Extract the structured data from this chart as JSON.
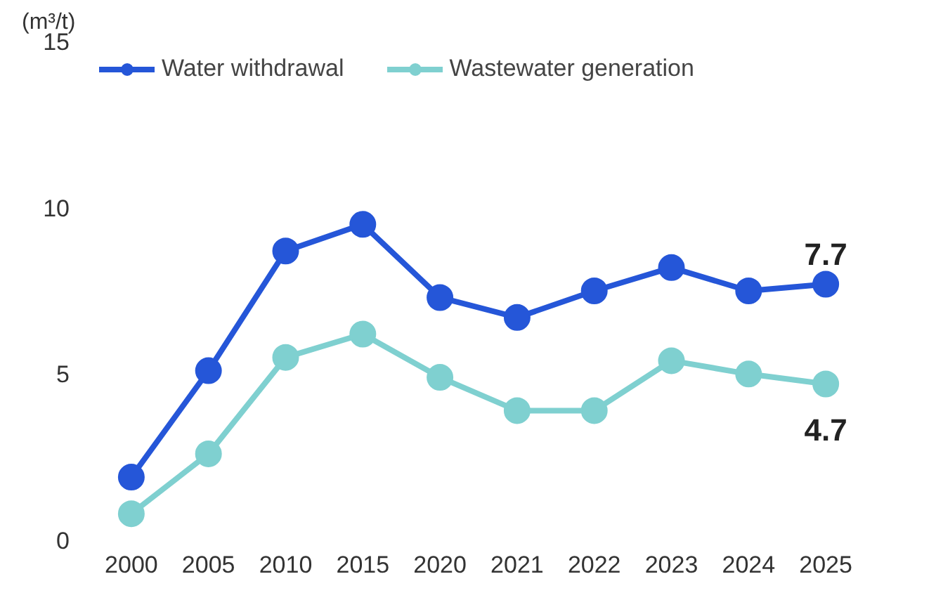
{
  "chart_data": {
    "type": "line",
    "ylabel": "(m³/t)",
    "categories": [
      "2000",
      "2005",
      "2010",
      "2015",
      "2020",
      "2021",
      "2022",
      "2023",
      "2024",
      "2025"
    ],
    "series": [
      {
        "name": "Water withdrawal",
        "color": "#2556d8",
        "values": [
          1.9,
          5.1,
          8.7,
          9.5,
          7.3,
          6.7,
          7.5,
          8.2,
          7.5,
          7.7
        ],
        "value_labels": [
          null,
          null,
          null,
          null,
          null,
          null,
          null,
          null,
          null,
          "7.7"
        ]
      },
      {
        "name": "Wastewater generation",
        "color": "#7fd0d0",
        "values": [
          0.8,
          2.6,
          5.5,
          6.2,
          4.9,
          3.9,
          3.9,
          5.4,
          5.0,
          4.7
        ],
        "value_labels": [
          null,
          null,
          null,
          null,
          null,
          null,
          null,
          null,
          null,
          "4.7"
        ]
      }
    ],
    "ylim": [
      0,
      15
    ],
    "yticks": [
      0,
      5,
      10,
      15
    ],
    "grid": false,
    "legend": "top left",
    "marker": "circle",
    "line_style": "solid"
  }
}
